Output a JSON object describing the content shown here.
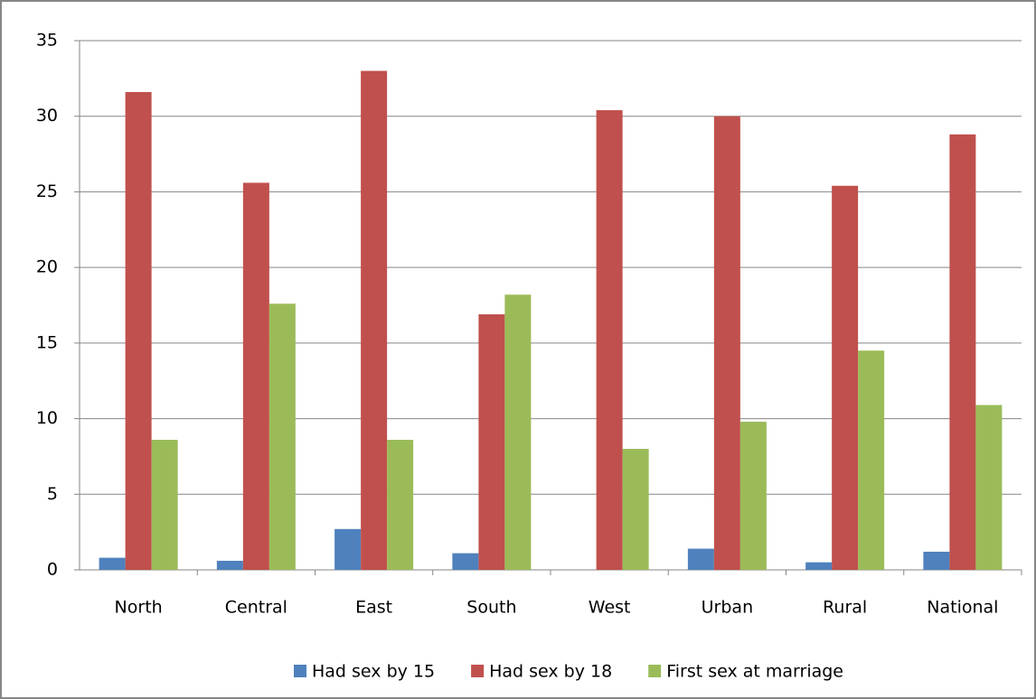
{
  "chart_data": {
    "type": "bar",
    "categories": [
      "North",
      "Central",
      "East",
      "South",
      "West",
      "Urban",
      "Rural",
      "National"
    ],
    "series": [
      {
        "name": "Had sex by 15",
        "color": "#4f81bd",
        "values": [
          0.8,
          0.6,
          2.7,
          1.1,
          0,
          1.4,
          0.5,
          1.2
        ]
      },
      {
        "name": "Had sex by 18",
        "color": "#c0504d",
        "values": [
          31.6,
          25.6,
          33.0,
          16.9,
          30.4,
          30.0,
          25.4,
          28.8
        ]
      },
      {
        "name": "First sex at marriage",
        "color": "#9bbb59",
        "values": [
          8.6,
          17.6,
          8.6,
          18.2,
          8.0,
          9.8,
          14.5,
          10.9
        ]
      }
    ],
    "ylim": [
      0,
      35
    ],
    "yticks": [
      0,
      5,
      10,
      15,
      20,
      25,
      30,
      35
    ],
    "grid": true,
    "legend": "bottom"
  }
}
